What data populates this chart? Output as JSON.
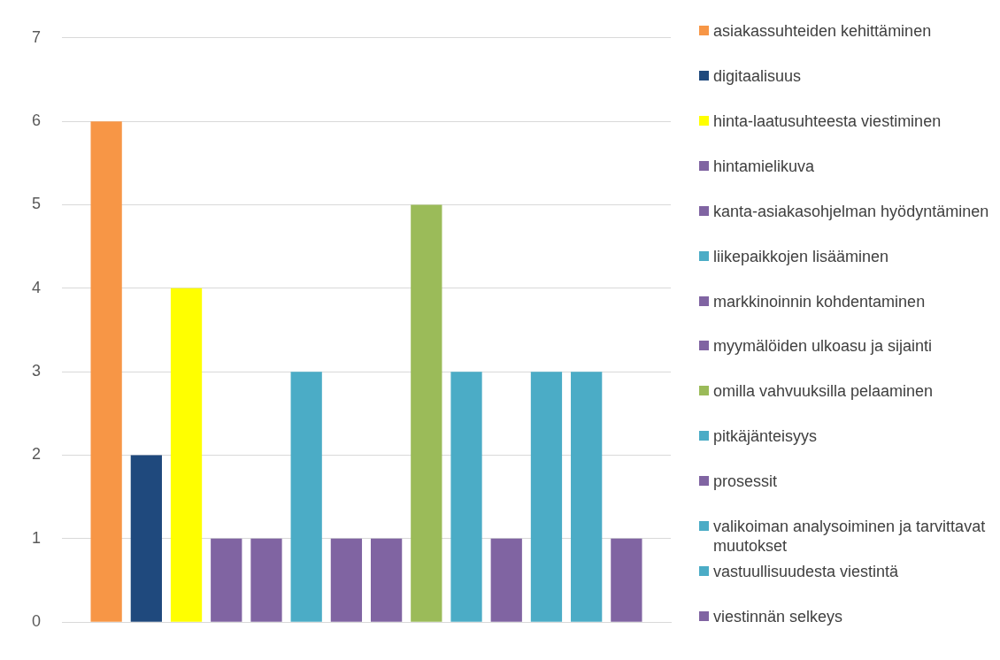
{
  "chart_data": {
    "type": "bar",
    "categories": [
      null
    ],
    "series": [
      {
        "name": "asiakassuhteiden kehittäminen",
        "color": "#f79646",
        "values": [
          6
        ]
      },
      {
        "name": "digitaalisuus",
        "color": "#1f497d",
        "values": [
          2
        ]
      },
      {
        "name": "hinta-laatusuhteesta viestiminen",
        "color": "#ffff00",
        "values": [
          4
        ]
      },
      {
        "name": "hintamielikuva",
        "color": "#8064a2",
        "values": [
          1
        ]
      },
      {
        "name": "kanta-asiakasohjelman hyödyntäminen",
        "color": "#8064a2",
        "values": [
          1
        ]
      },
      {
        "name": "liikepaikkojen lisääminen",
        "color": "#4bacc6",
        "values": [
          3
        ]
      },
      {
        "name": "markkinoinnin kohdentaminen",
        "color": "#8064a2",
        "values": [
          1
        ]
      },
      {
        "name": "myymälöiden ulkoasu ja sijainti",
        "color": "#8064a2",
        "values": [
          1
        ]
      },
      {
        "name": "omilla vahvuuksilla pelaaminen",
        "color": "#9bbb59",
        "values": [
          5
        ]
      },
      {
        "name": "pitkäjänteisyys",
        "color": "#4bacc6",
        "values": [
          3
        ]
      },
      {
        "name": "prosessit",
        "color": "#8064a2",
        "values": [
          1
        ]
      },
      {
        "name": "valikoiman analysoiminen ja tarvittavat muutokset",
        "color": "#4bacc6",
        "values": [
          3
        ]
      },
      {
        "name": "vastuullisuudesta viestintä",
        "color": "#4bacc6",
        "values": [
          3
        ]
      },
      {
        "name": "viestinnän selkeys",
        "color": "#8064a2",
        "values": [
          1
        ]
      }
    ],
    "ylim": [
      0,
      7
    ],
    "yticks": [
      0,
      1,
      2,
      3,
      4,
      5,
      6,
      7
    ],
    "grid": "y",
    "legend": "right",
    "tick_labels": "y"
  }
}
